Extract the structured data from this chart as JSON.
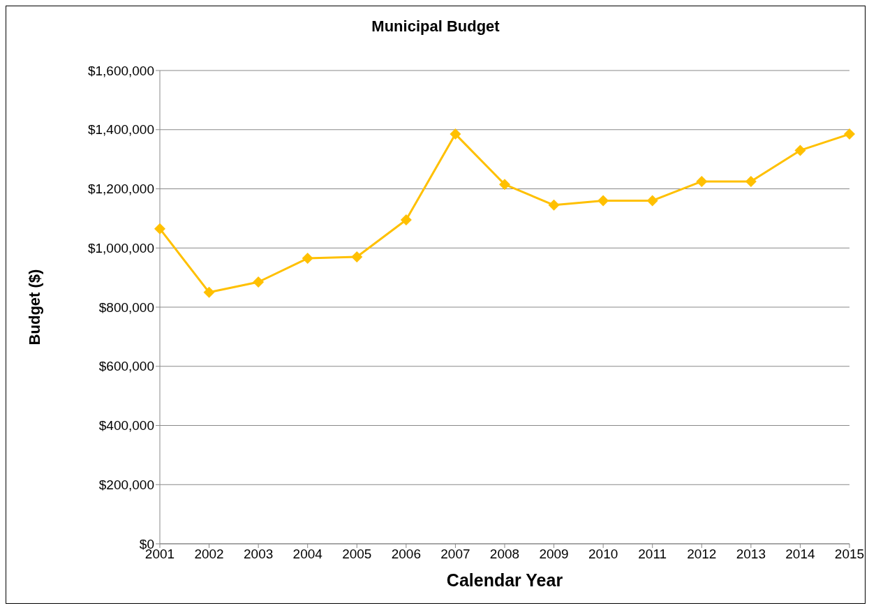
{
  "chart_data": {
    "type": "line",
    "title": "Municipal Budget",
    "xlabel": "Calendar Year",
    "ylabel": "Budget ($)",
    "categories": [
      "2001",
      "2002",
      "2003",
      "2004",
      "2005",
      "2006",
      "2007",
      "2008",
      "2009",
      "2010",
      "2011",
      "2012",
      "2013",
      "2014",
      "2015"
    ],
    "series": [
      {
        "color": "#ffc000",
        "values": [
          1065000,
          850000,
          885000,
          965000,
          970000,
          1095000,
          1385000,
          1215000,
          1145000,
          1160000,
          1160000,
          1225000,
          1225000,
          1330000,
          1385000
        ]
      }
    ],
    "ylim": [
      0,
      1600000
    ],
    "yticks": [
      {
        "value": 0,
        "label": "$0"
      },
      {
        "value": 200000,
        "label": "$200,000"
      },
      {
        "value": 400000,
        "label": "$400,000"
      },
      {
        "value": 600000,
        "label": "$600,000"
      },
      {
        "value": 800000,
        "label": "$800,000"
      },
      {
        "value": 1000000,
        "label": "$1,000,000"
      },
      {
        "value": 1200000,
        "label": "$1,200,000"
      },
      {
        "value": 1400000,
        "label": "$1,400,000"
      },
      {
        "value": 1600000,
        "label": "$1,600,000"
      }
    ],
    "grid": "y",
    "legend": false,
    "marker": "diamond",
    "line_style": "solid"
  }
}
